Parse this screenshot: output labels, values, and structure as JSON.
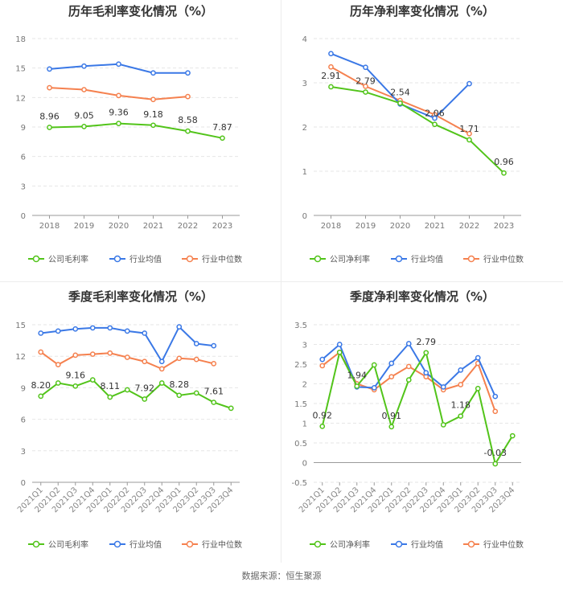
{
  "source_note": "数据来源：恒生聚源",
  "chart_data": [
    {
      "type": "line",
      "title": "历年毛利率变化情况（%）",
      "categories": [
        "2018",
        "2019",
        "2020",
        "2021",
        "2022",
        "2023"
      ],
      "ylim": [
        0,
        18
      ],
      "yticks": [
        0,
        3,
        6,
        9,
        12,
        15,
        18
      ],
      "ytick_labels": [
        "0",
        "3",
        "6",
        "9",
        "12",
        "15",
        "18"
      ],
      "series": [
        {
          "name": "公司毛利率",
          "color": "#52c41a",
          "values": [
            8.96,
            9.05,
            9.36,
            9.18,
            8.58,
            7.87
          ],
          "labels": [
            "8.96",
            "9.05",
            "9.36",
            "9.18",
            "8.58",
            "7.87"
          ]
        },
        {
          "name": "行业均值",
          "color": "#3a78e6",
          "values": [
            14.9,
            15.2,
            15.4,
            14.5,
            14.5,
            null
          ]
        },
        {
          "name": "行业中位数",
          "color": "#f5814f",
          "values": [
            13.0,
            12.8,
            12.2,
            11.8,
            12.1,
            null
          ]
        }
      ]
    },
    {
      "type": "line",
      "title": "历年净利率变化情况（%）",
      "categories": [
        "2018",
        "2019",
        "2020",
        "2021",
        "2022",
        "2023"
      ],
      "ylim": [
        0,
        4
      ],
      "yticks": [
        0,
        1,
        2,
        3,
        4
      ],
      "ytick_labels": [
        "0",
        "1",
        "2",
        "3",
        "4"
      ],
      "series": [
        {
          "name": "公司净利率",
          "color": "#52c41a",
          "values": [
            2.91,
            2.79,
            2.54,
            2.06,
            1.71,
            0.96
          ],
          "labels": [
            "2.91",
            "2.79",
            "2.54",
            "2.06",
            "1.71",
            "0.96"
          ]
        },
        {
          "name": "行业均值",
          "color": "#3a78e6",
          "values": [
            3.66,
            3.35,
            2.52,
            2.2,
            2.98,
            null
          ]
        },
        {
          "name": "行业中位数",
          "color": "#f5814f",
          "values": [
            3.36,
            2.92,
            2.6,
            2.28,
            1.85,
            null
          ]
        }
      ]
    },
    {
      "type": "line",
      "title": "季度毛利率变化情况（%）",
      "categories": [
        "2021Q1",
        "2021Q2",
        "2021Q3",
        "2021Q4",
        "2022Q1",
        "2022Q2",
        "2022Q3",
        "2022Q4",
        "2023Q1",
        "2023Q2",
        "2023Q3",
        "2023Q4"
      ],
      "ylim": [
        0,
        15
      ],
      "yticks": [
        0,
        3,
        6,
        9,
        12,
        15
      ],
      "ytick_labels": [
        "0",
        "3",
        "6",
        "9",
        "12",
        "15"
      ],
      "series": [
        {
          "name": "公司毛利率",
          "color": "#52c41a",
          "values": [
            8.2,
            9.45,
            9.16,
            9.75,
            8.11,
            8.8,
            7.92,
            9.45,
            8.28,
            8.5,
            7.61,
            7.05
          ],
          "labels": [
            "8.20",
            null,
            "9.16",
            null,
            "8.11",
            null,
            "7.92",
            null,
            "8.28",
            null,
            "7.61",
            null
          ]
        },
        {
          "name": "行业均值",
          "color": "#3a78e6",
          "values": [
            14.2,
            14.4,
            14.6,
            14.7,
            14.7,
            14.4,
            14.2,
            11.5,
            14.8,
            13.2,
            13.0,
            null
          ]
        },
        {
          "name": "行业中位数",
          "color": "#f5814f",
          "values": [
            12.4,
            11.2,
            12.1,
            12.2,
            12.3,
            11.9,
            11.5,
            10.8,
            11.8,
            11.7,
            11.3,
            null
          ]
        }
      ]
    },
    {
      "type": "line",
      "title": "季度净利率变化情况（%）",
      "categories": [
        "2021Q1",
        "2021Q2",
        "2021Q3",
        "2021Q4",
        "2022Q1",
        "2022Q2",
        "2022Q3",
        "2022Q4",
        "2023Q1",
        "2023Q2",
        "2023Q3",
        "2023Q4"
      ],
      "ylim": [
        -0.5,
        3.5
      ],
      "yticks": [
        -0.5,
        0,
        0.5,
        1,
        1.5,
        2,
        2.5,
        3,
        3.5
      ],
      "ytick_labels": [
        "-0.5",
        "0",
        "0.5",
        "1",
        "1.5",
        "2",
        "2.5",
        "3",
        "3.5"
      ],
      "series": [
        {
          "name": "公司净利率",
          "color": "#52c41a",
          "values": [
            0.92,
            2.8,
            1.94,
            2.48,
            0.91,
            2.1,
            2.79,
            0.96,
            1.18,
            1.88,
            -0.03,
            0.68
          ],
          "labels": [
            "0.92",
            null,
            "1.94",
            null,
            "0.91",
            null,
            "2.79",
            null,
            "1.18",
            null,
            "-0.03",
            null
          ]
        },
        {
          "name": "行业均值",
          "color": "#3a78e6",
          "values": [
            2.62,
            3.0,
            1.92,
            1.9,
            2.52,
            3.02,
            2.28,
            1.92,
            2.35,
            2.66,
            1.68,
            null
          ]
        },
        {
          "name": "行业中位数",
          "color": "#f5814f",
          "values": [
            2.46,
            2.8,
            2.0,
            1.85,
            2.18,
            2.44,
            2.18,
            1.85,
            1.98,
            2.52,
            1.3,
            null
          ]
        }
      ]
    }
  ]
}
